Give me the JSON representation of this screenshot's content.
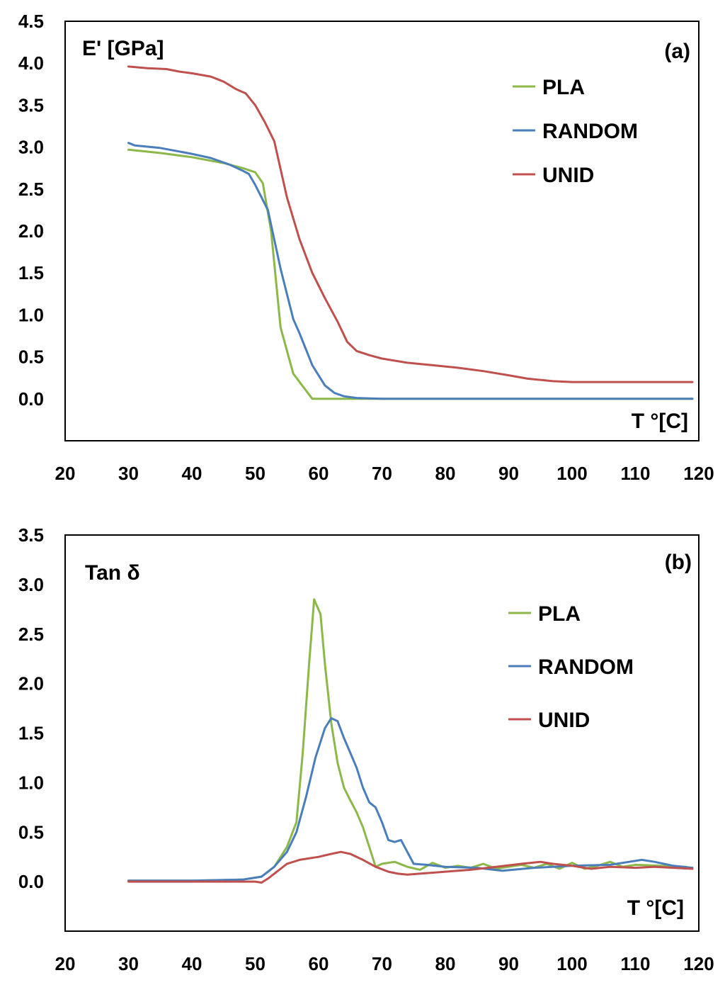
{
  "colors": {
    "PLA": "#8cb84a",
    "RANDOM": "#4a7ebb",
    "UNID": "#c0504d"
  },
  "chart_data": [
    {
      "type": "line",
      "panel": "(a)",
      "ylabel": "E' [GPa]",
      "xlabel": "T °[C]",
      "xlim": [
        20,
        120
      ],
      "ylim": [
        -0.5,
        4.5
      ],
      "xticks": [
        20,
        30,
        40,
        50,
        60,
        70,
        80,
        90,
        100,
        110,
        120
      ],
      "yticks": [
        0.0,
        0.5,
        1.0,
        1.5,
        2.0,
        2.5,
        3.0,
        3.5,
        4.0,
        4.5
      ],
      "ytick_labels": [
        "0.0",
        "0.5",
        "1.0",
        "1.5",
        "2.0",
        "2.5",
        "3.0",
        "3.5",
        "4.0",
        "4.5"
      ],
      "xtick_labels": [
        "20",
        "30",
        "40",
        "50",
        "60",
        "70",
        "80",
        "90",
        "100",
        "110",
        "120"
      ],
      "legend": [
        "PLA",
        "RANDOM",
        "UNID"
      ],
      "series": [
        {
          "name": "PLA",
          "x": [
            30,
            35,
            40,
            45,
            48,
            50,
            51.2,
            52.5,
            54,
            56,
            59,
            65,
            80,
            100,
            119
          ],
          "y": [
            2.97,
            2.93,
            2.88,
            2.81,
            2.75,
            2.7,
            2.57,
            2.0,
            0.85,
            0.3,
            0.0,
            0.0,
            0.0,
            0.0,
            0.0
          ]
        },
        {
          "name": "RANDOM",
          "x": [
            30,
            31,
            35,
            40,
            43,
            46,
            48,
            49,
            50,
            52,
            54,
            56,
            57,
            59,
            61,
            62.5,
            64,
            66,
            70,
            80,
            100,
            119
          ],
          "y": [
            3.05,
            3.02,
            2.99,
            2.92,
            2.87,
            2.79,
            2.72,
            2.68,
            2.55,
            2.25,
            1.55,
            0.95,
            0.78,
            0.4,
            0.16,
            0.07,
            0.03,
            0.01,
            0.0,
            0.0,
            0.0,
            0.0
          ]
        },
        {
          "name": "UNID",
          "x": [
            30,
            33,
            36,
            38,
            40,
            43,
            45,
            47,
            48.5,
            50,
            51.5,
            53,
            55,
            57,
            59,
            61,
            63,
            64.5,
            66,
            68,
            70,
            74,
            78,
            82,
            86,
            90,
            93,
            97,
            100,
            105,
            119
          ],
          "y": [
            3.96,
            3.94,
            3.93,
            3.9,
            3.88,
            3.84,
            3.78,
            3.69,
            3.64,
            3.5,
            3.3,
            3.07,
            2.4,
            1.9,
            1.5,
            1.2,
            0.92,
            0.68,
            0.57,
            0.52,
            0.48,
            0.43,
            0.4,
            0.37,
            0.33,
            0.28,
            0.24,
            0.21,
            0.2,
            0.2,
            0.2
          ]
        }
      ]
    },
    {
      "type": "line",
      "panel": "(b)",
      "ylabel": "Tan δ",
      "xlabel": "T °[C]",
      "xlim": [
        20,
        120
      ],
      "ylim": [
        -0.5,
        3.5
      ],
      "xticks": [
        20,
        30,
        40,
        50,
        60,
        70,
        80,
        90,
        100,
        110,
        120
      ],
      "yticks": [
        0.0,
        0.5,
        1.0,
        1.5,
        2.0,
        2.5,
        3.0,
        3.5
      ],
      "ytick_labels": [
        "0.0",
        "0.5",
        "1.0",
        "1.5",
        "2.0",
        "2.5",
        "3.0",
        "3.5"
      ],
      "xtick_labels": [
        "20",
        "30",
        "40",
        "50",
        "60",
        "70",
        "80",
        "90",
        "100",
        "110",
        "120"
      ],
      "legend": [
        "PLA",
        "RANDOM",
        "UNID"
      ],
      "series": [
        {
          "name": "PLA",
          "x": [
            30,
            40,
            48,
            51,
            53,
            55,
            56.5,
            57.5,
            58.5,
            59.3,
            60.3,
            61,
            62,
            63,
            64,
            65,
            66,
            67,
            68,
            69,
            70,
            72,
            74,
            76,
            78,
            80,
            82,
            84,
            86,
            88,
            90,
            92,
            94,
            96,
            98,
            100,
            102,
            104,
            106,
            108,
            110,
            114,
            118
          ],
          "y": [
            0.01,
            0.01,
            0.02,
            0.05,
            0.15,
            0.35,
            0.6,
            1.3,
            2.2,
            2.85,
            2.7,
            2.2,
            1.6,
            1.2,
            0.95,
            0.82,
            0.7,
            0.55,
            0.35,
            0.15,
            0.18,
            0.2,
            0.15,
            0.12,
            0.19,
            0.14,
            0.16,
            0.14,
            0.18,
            0.13,
            0.15,
            0.17,
            0.14,
            0.18,
            0.13,
            0.19,
            0.13,
            0.16,
            0.2,
            0.15,
            0.17,
            0.16,
            0.15
          ]
        },
        {
          "name": "RANDOM",
          "x": [
            30,
            40,
            48,
            51,
            53,
            55,
            56.5,
            58,
            59.5,
            61,
            62,
            63,
            64,
            65,
            66,
            67,
            68,
            69,
            70,
            71,
            72,
            73,
            74,
            75,
            77,
            80,
            85,
            89,
            94,
            100,
            106,
            111,
            113,
            116,
            119
          ],
          "y": [
            0.01,
            0.01,
            0.02,
            0.05,
            0.15,
            0.3,
            0.5,
            0.85,
            1.25,
            1.55,
            1.65,
            1.62,
            1.45,
            1.3,
            1.15,
            0.95,
            0.8,
            0.75,
            0.6,
            0.42,
            0.4,
            0.42,
            0.3,
            0.18,
            0.17,
            0.15,
            0.14,
            0.11,
            0.14,
            0.16,
            0.17,
            0.22,
            0.2,
            0.16,
            0.14
          ]
        },
        {
          "name": "UNID",
          "x": [
            30,
            40,
            50,
            51,
            52,
            53,
            55,
            57,
            60,
            62,
            63.5,
            65,
            67,
            69,
            71,
            72.5,
            74,
            76,
            80,
            84,
            88,
            92,
            95,
            97,
            100,
            103,
            106,
            110,
            113,
            116,
            119
          ],
          "y": [
            0.0,
            0.0,
            0.0,
            -0.01,
            0.03,
            0.08,
            0.18,
            0.22,
            0.25,
            0.28,
            0.3,
            0.28,
            0.22,
            0.15,
            0.1,
            0.08,
            0.07,
            0.08,
            0.1,
            0.12,
            0.15,
            0.18,
            0.2,
            0.18,
            0.16,
            0.13,
            0.15,
            0.14,
            0.15,
            0.14,
            0.13
          ]
        }
      ]
    }
  ]
}
